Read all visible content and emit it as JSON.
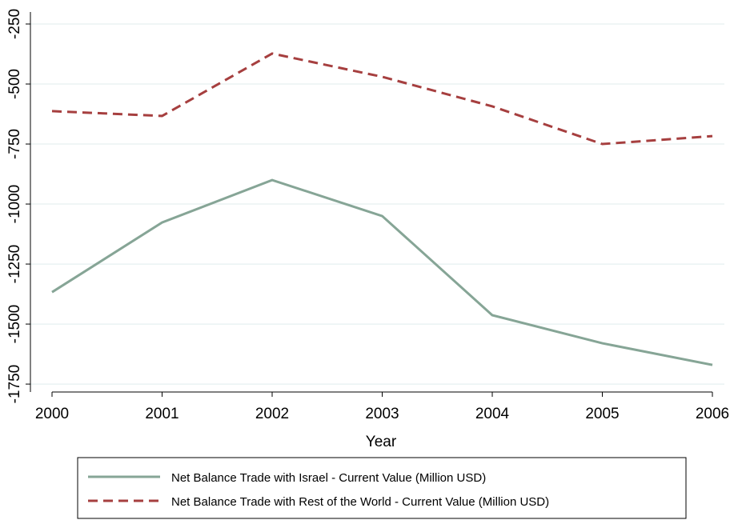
{
  "chart_data": {
    "type": "line",
    "x_label": "Year",
    "x": [
      2000,
      2001,
      2002,
      2003,
      2004,
      2005,
      2006
    ],
    "xlim": [
      2000,
      2006
    ],
    "xticks": [
      2000,
      2001,
      2002,
      2003,
      2004,
      2005,
      2006
    ],
    "ylim": [
      -1783,
      -200
    ],
    "yticks": [
      -1750,
      -1500,
      -1250,
      -1000,
      -750,
      -500,
      -250
    ],
    "grid": true,
    "legend": "bottom",
    "series": [
      {
        "name": "Net Balance Trade with Israel - Current Value (Million USD)",
        "color": "#86a596",
        "dash": "solid",
        "values": [
          -1367,
          -1077,
          -900,
          -1050,
          -1463,
          -1580,
          -1670
        ]
      },
      {
        "name": "Net Balance Trade with Rest of the World - Current Value (Million USD)",
        "color": "#a63f3f",
        "dash": "dashed",
        "values": [
          -613,
          -633,
          -373,
          -470,
          -593,
          -750,
          -717
        ]
      }
    ]
  }
}
